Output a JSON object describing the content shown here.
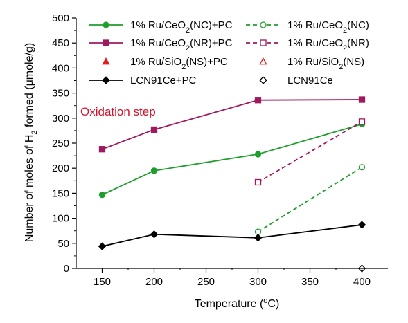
{
  "chart_data": {
    "type": "line",
    "xlabel": "Temperature (",
    "xlabel_sup": "o",
    "xlabel_end": "C)",
    "ylabel": "Number of moles of H",
    "ylabel_sub": "2",
    "ylabel_end": " formed (μmole/g)",
    "annotation": "Oxidation step",
    "xlim": [
      125,
      425
    ],
    "ylim": [
      0,
      500
    ],
    "x_ticks": [
      150,
      200,
      250,
      300,
      350,
      400
    ],
    "y_ticks": [
      0,
      50,
      100,
      150,
      200,
      250,
      300,
      350,
      400,
      450,
      500
    ],
    "legend_placement": "top",
    "series": [
      {
        "id": "ru-ceo2-nc-pc",
        "label_parts": [
          "1% Ru/CeO",
          "2",
          "(NC)+PC"
        ],
        "color": "#1e9e2b",
        "marker": "circle",
        "filled": true,
        "dash": false,
        "x": [
          150,
          200,
          300,
          400
        ],
        "y": [
          147,
          195,
          228,
          288
        ]
      },
      {
        "id": "ru-ceo2-nc",
        "label_parts": [
          "1% Ru/CeO",
          "2",
          "(NC)"
        ],
        "color": "#1e9e2b",
        "marker": "circle",
        "filled": false,
        "dash": true,
        "x": [
          300,
          400
        ],
        "y": [
          73,
          202
        ]
      },
      {
        "id": "ru-ceo2-nr-pc",
        "label_parts": [
          "1% Ru/CeO",
          "2",
          "(NR)+PC"
        ],
        "color": "#a0195f",
        "marker": "square",
        "filled": true,
        "dash": false,
        "x": [
          150,
          200,
          300,
          400
        ],
        "y": [
          238,
          277,
          336,
          337
        ]
      },
      {
        "id": "ru-ceo2-nr",
        "label_parts": [
          "1% Ru/CeO",
          "2",
          "(NR)"
        ],
        "color": "#a0195f",
        "marker": "square",
        "filled": false,
        "dash": true,
        "x": [
          300,
          400
        ],
        "y": [
          172,
          293
        ]
      },
      {
        "id": "ru-sio2-ns-pc",
        "label_parts": [
          "1% Ru/SiO",
          "2",
          "(NS)+PC"
        ],
        "color": "#e0201b",
        "marker": "triangle",
        "filled": true,
        "dash": false,
        "x": [],
        "y": []
      },
      {
        "id": "ru-sio2-ns",
        "label_parts": [
          "1% Ru/SiO",
          "2",
          "(NS)"
        ],
        "color": "#e0201b",
        "marker": "triangle",
        "filled": false,
        "dash": false,
        "x": [],
        "y": []
      },
      {
        "id": "lcn91ce-pc",
        "label_parts": [
          "LCN91Ce+PC",
          "",
          ""
        ],
        "color": "#000000",
        "marker": "diamond",
        "filled": true,
        "dash": false,
        "x": [
          150,
          200,
          300,
          400
        ],
        "y": [
          44,
          68,
          61,
          87
        ]
      },
      {
        "id": "lcn91ce",
        "label_parts": [
          "LCN91Ce",
          "",
          ""
        ],
        "color": "#000000",
        "marker": "diamond",
        "filled": false,
        "dash": false,
        "x": [
          400
        ],
        "y": [
          0
        ]
      }
    ],
    "colors": {
      "annotation": "#d0142c",
      "axis": "#000000"
    }
  }
}
